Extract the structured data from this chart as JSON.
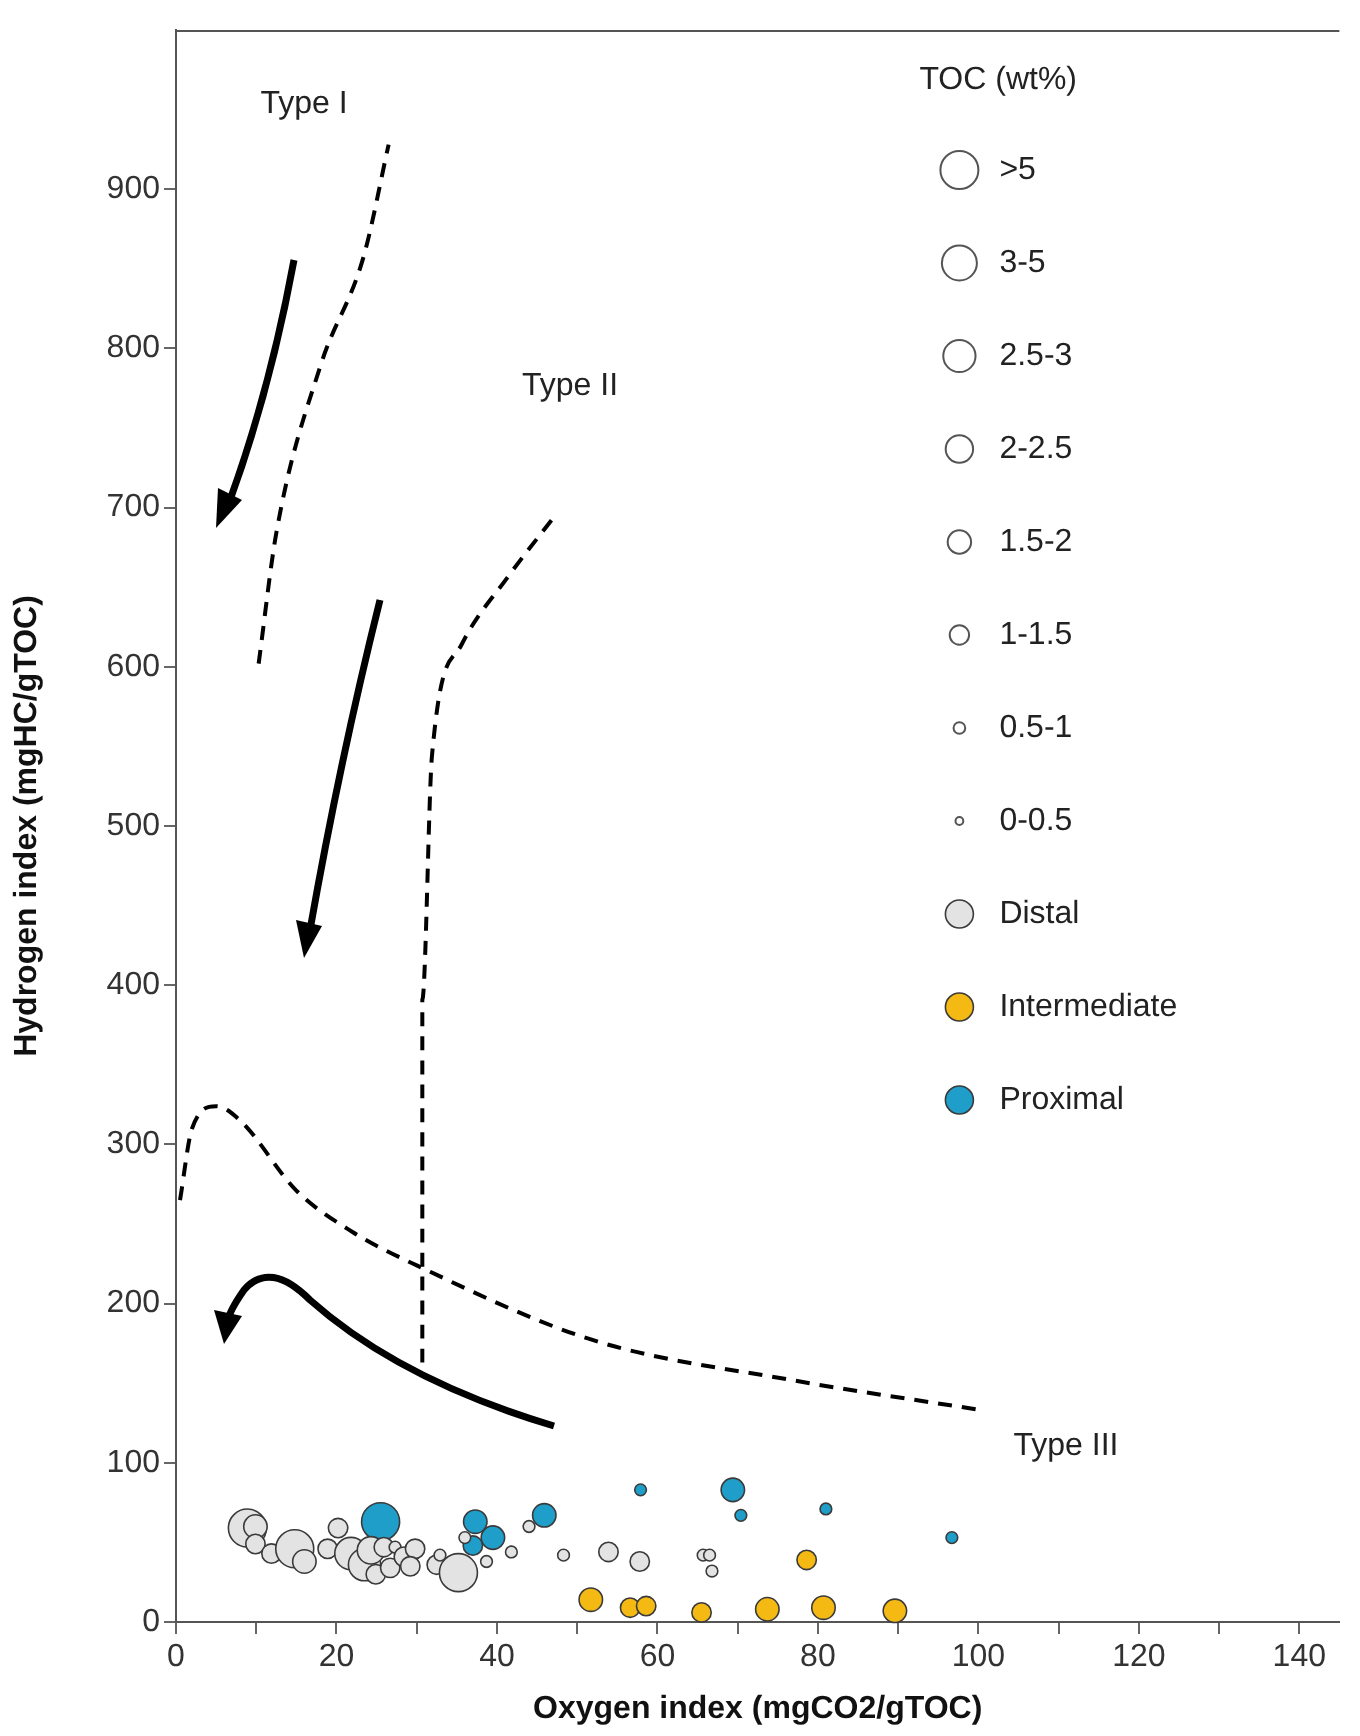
{
  "chart_data": {
    "type": "bubble",
    "xlabel": "Oxygen index (mgCO2/gTOC)",
    "ylabel": "Hydrogen index (mgHC/gTOC)",
    "legend_title": "TOC (wt%)",
    "legend": "right",
    "grid": false,
    "xlim": [
      0,
      145
    ],
    "ylim": [
      0,
      1000
    ],
    "xticks": [
      0,
      {
        "value": 10,
        "label": null
      },
      20,
      {
        "value": 30,
        "label": null
      },
      40,
      {
        "value": 50,
        "label": null
      },
      60,
      {
        "value": 70,
        "label": null
      },
      80,
      {
        "value": 90,
        "label": null
      },
      100,
      {
        "value": 110,
        "label": null
      },
      120,
      {
        "value": 130,
        "label": null
      },
      140
    ],
    "yticks": [
      0,
      100,
      200,
      300,
      400,
      500,
      600,
      700,
      800,
      900
    ],
    "size_legend": [
      {
        "value": 1,
        "label": ">5"
      },
      {
        "value": 0.85,
        "label": "3-5"
      },
      {
        "value": 0.72,
        "label": "2.5-3"
      },
      {
        "value": 0.52,
        "label": "2-2.5"
      },
      {
        "value": 0.38,
        "label": "1.5-2"
      },
      {
        "value": 0.26,
        "label": "1-1.5"
      },
      {
        "value": 0.095,
        "label": "0.5-1"
      },
      {
        "value": 0.042,
        "label": "0-0.5"
      }
    ],
    "annotations": [
      "Type I",
      "Type II",
      "Type III"
    ],
    "series": [
      {
        "type": "line",
        "color": "#000000",
        "line_style": "dashed",
        "marker": "none",
        "x": [
          10.3,
          12.5,
          18,
          23.4,
          26.5
        ],
        "values": [
          602,
          684,
          789,
          858,
          928
        ]
      },
      {
        "type": "line",
        "color": "#000000",
        "line_style": "dashed",
        "marker": "none",
        "x": [
          30.7,
          30.7,
          31.9,
          35.6,
          41.3,
          47.4
        ],
        "values": [
          163,
          391,
          544,
          614,
          656,
          696
        ]
      },
      {
        "type": "line",
        "color": "#000000",
        "line_style": "dashed",
        "marker": "none",
        "x": [
          0.5,
          2,
          5,
          8,
          15,
          22,
          30,
          52,
          76.7,
          100.5
        ],
        "values": [
          265,
          310,
          324,
          315,
          271,
          245,
          224,
          177,
          152,
          133
        ]
      },
      {
        "name": "Distal",
        "color": "#e3e3e3",
        "x": [
          8.9,
          9.9,
          9.9,
          11.9,
          14.8,
          16,
          18.9,
          20.2,
          21.8,
          23.5,
          24.9,
          24.3,
          25.9,
          26.7,
          27.3,
          28.4,
          29.8,
          29.2,
          32.5,
          32.9,
          35.2,
          36,
          38.7,
          41.8,
          44,
          48.3,
          53.9,
          57.8,
          65.7,
          66.5,
          66.8
        ],
        "values": [
          59,
          60,
          49,
          43,
          46,
          38,
          46,
          59,
          43,
          36,
          30,
          45,
          47,
          34,
          47,
          41,
          46,
          35,
          36,
          42,
          31,
          53,
          38,
          44,
          60,
          42,
          44,
          38,
          42,
          42,
          32
        ],
        "sizes": [
          1,
          0.38,
          0.26,
          0.26,
          1,
          0.38,
          0.26,
          0.26,
          0.72,
          0.72,
          0.26,
          0.52,
          0.26,
          0.26,
          0.095,
          0.26,
          0.26,
          0.26,
          0.26,
          0.095,
          1,
          0.095,
          0.095,
          0.095,
          0.095,
          0.095,
          0.26,
          0.26,
          0.095,
          0.095,
          0.095
        ]
      },
      {
        "name": "Intermediate",
        "color": "#f5b914",
        "x": [
          51.7,
          56.6,
          58.6,
          65.5,
          73.7,
          80.7,
          89.6,
          78.6
        ],
        "values": [
          14,
          9,
          10,
          6,
          8,
          9,
          7,
          39
        ],
        "sizes": [
          0.38,
          0.26,
          0.26,
          0.26,
          0.38,
          0.38,
          0.38,
          0.26
        ]
      },
      {
        "name": "Proximal",
        "color": "#1e9ec8",
        "x": [
          25.5,
          37.3,
          37,
          39.5,
          45.9,
          57.9,
          69.4,
          70.4,
          81,
          96.7
        ],
        "values": [
          63,
          63,
          48,
          53,
          67,
          83,
          83,
          67,
          71,
          53
        ],
        "sizes": [
          1,
          0.38,
          0.26,
          0.38,
          0.38,
          0.095,
          0.38,
          0.095,
          0.095,
          0.095
        ]
      }
    ]
  }
}
